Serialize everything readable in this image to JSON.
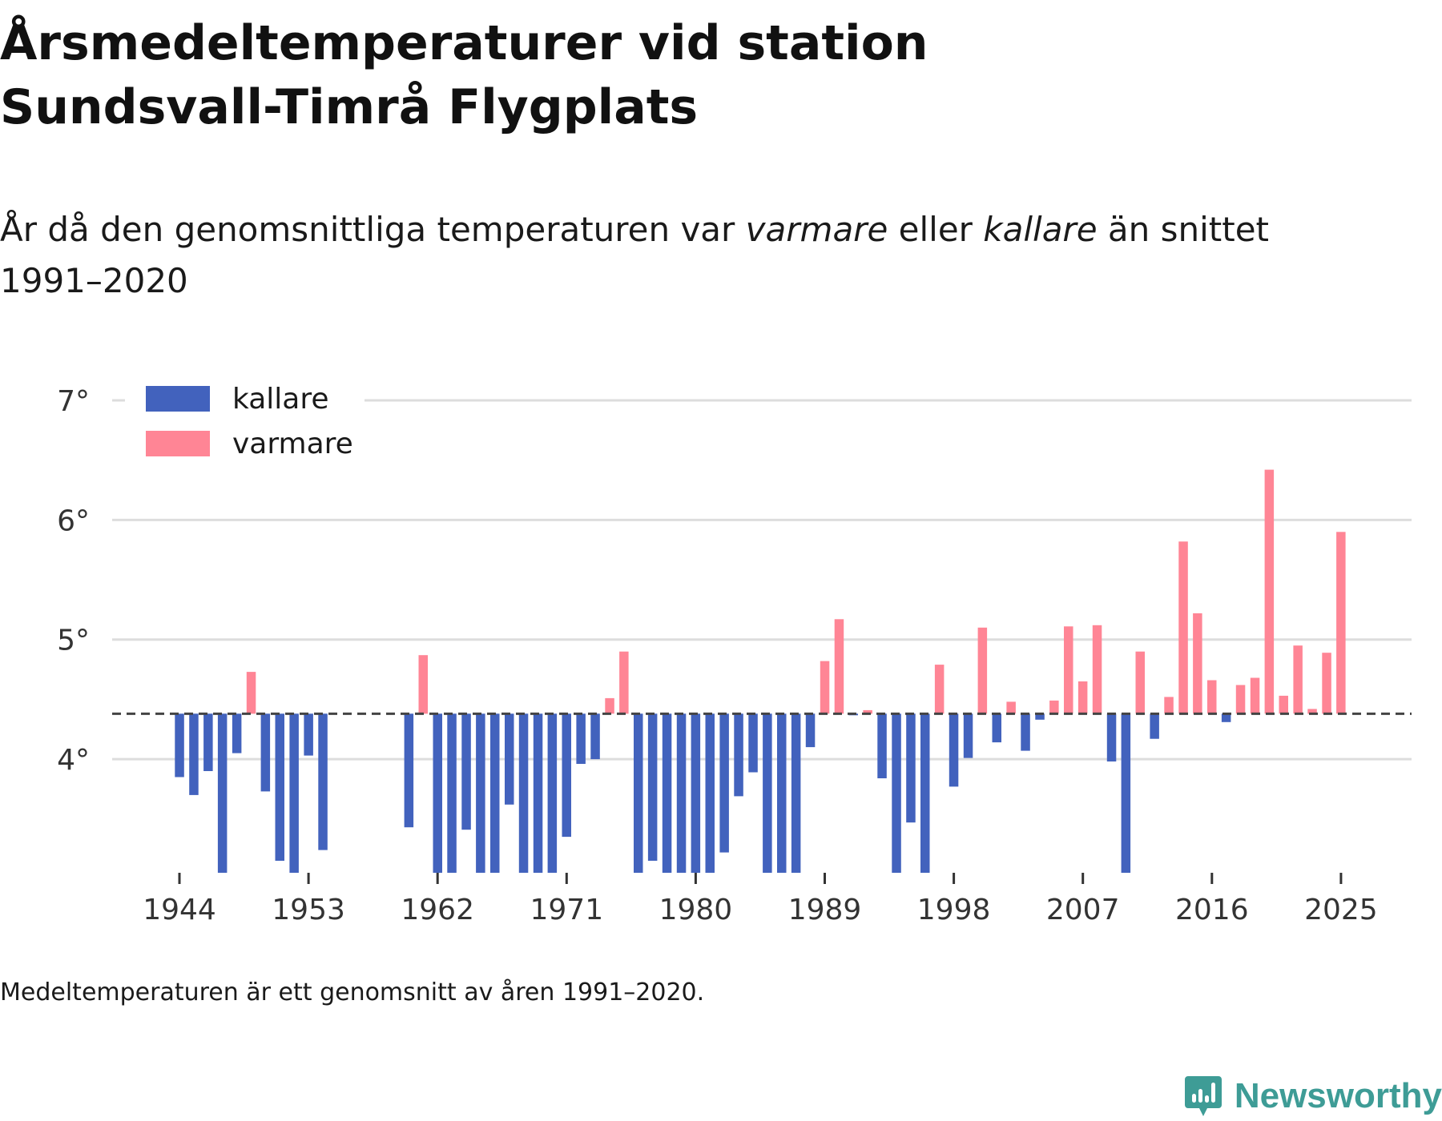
{
  "title_line1": "Årsmedeltemperaturer vid station",
  "title_line2": "Sundsvall-Timrå Flygplats",
  "subtitle": {
    "part1": "År då den genomsnittliga temperaturen var ",
    "warm_word": "varmare",
    "part2": " eller ",
    "cold_word": "kallare",
    "part3": " än snittet",
    "line2": "1991–2020"
  },
  "note": "Medeltemperaturen är ett genomsnitt av åren 1991–2020.",
  "brand": "Newsworthy",
  "colors": {
    "cold": "#4262bd",
    "warm": "#ff8595",
    "grid": "#dddddd",
    "baseline": "#444444",
    "brand": "#3e9c96"
  },
  "chart_data": {
    "type": "bar",
    "baseline": 4.38,
    "ylim": [
      3.05,
      7.0
    ],
    "yticks": [
      4,
      5,
      6,
      7
    ],
    "ytick_labels": [
      "4°",
      "5°",
      "6°",
      "7°"
    ],
    "xticks": [
      1944,
      1953,
      1962,
      1971,
      1980,
      1989,
      1998,
      2007,
      2016,
      2025
    ],
    "legend": [
      {
        "key": "cold",
        "label": "kallare"
      },
      {
        "key": "warm",
        "label": "varmare"
      }
    ],
    "legend_position": "top-left",
    "years": [
      1944,
      1945,
      1946,
      1947,
      1948,
      1949,
      1950,
      1951,
      1952,
      1953,
      1954,
      1955,
      1956,
      1957,
      1958,
      1959,
      1960,
      1961,
      1962,
      1963,
      1964,
      1965,
      1966,
      1967,
      1968,
      1969,
      1970,
      1971,
      1972,
      1973,
      1974,
      1975,
      1976,
      1977,
      1978,
      1979,
      1980,
      1981,
      1982,
      1983,
      1984,
      1985,
      1986,
      1987,
      1988,
      1989,
      1990,
      1991,
      1992,
      1993,
      1994,
      1995,
      1996,
      1997,
      1998,
      1999,
      2000,
      2001,
      2002,
      2003,
      2004,
      2005,
      2006,
      2007,
      2008,
      2009,
      2010,
      2011,
      2012,
      2013,
      2014,
      2015,
      2016,
      2017,
      2018,
      2019,
      2020,
      2021,
      2022,
      2023,
      2024,
      2025
    ],
    "values": [
      3.85,
      3.7,
      3.9,
      3.05,
      4.05,
      4.73,
      3.73,
      3.15,
      3.05,
      4.03,
      3.24,
      null,
      null,
      null,
      null,
      null,
      3.43,
      4.87,
      3.05,
      3.05,
      3.41,
      3.05,
      3.05,
      3.62,
      3.05,
      3.05,
      3.05,
      3.35,
      3.96,
      4.0,
      4.51,
      4.9,
      3.05,
      3.15,
      3.05,
      3.05,
      3.05,
      3.05,
      3.22,
      3.69,
      3.89,
      3.05,
      3.05,
      3.05,
      4.1,
      4.82,
      5.17,
      4.37,
      4.41,
      3.84,
      3.05,
      3.47,
      3.05,
      4.79,
      3.77,
      4.01,
      5.1,
      4.14,
      4.48,
      4.07,
      4.33,
      4.49,
      5.11,
      4.65,
      5.12,
      3.98,
      3.05,
      4.9,
      4.17,
      4.52,
      5.82,
      5.22,
      4.66,
      4.31,
      4.62,
      4.68,
      6.42,
      4.53,
      4.95,
      4.42,
      4.89,
      5.9
    ]
  }
}
